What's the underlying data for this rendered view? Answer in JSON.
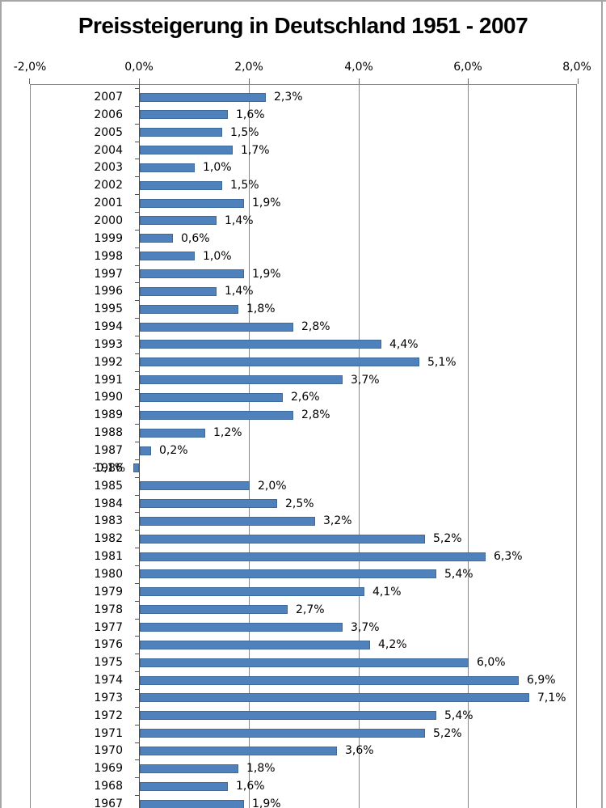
{
  "frame": {
    "border_color": "#a6a6a6",
    "background": "#ffffff"
  },
  "chart_data": {
    "type": "bar",
    "orientation": "horizontal",
    "title": "Preissteigerung in Deutschland 1951 - 2007",
    "xlabel": "",
    "ylabel": "",
    "grid": "vertical-gridlines-on",
    "legend": "none",
    "x_axis": {
      "range": [
        -2,
        8
      ],
      "tick_values": [
        -2,
        0,
        2,
        4,
        6,
        8
      ],
      "tick_labels": [
        "-2,0%",
        "0,0%",
        "2,0%",
        "4,0%",
        "6,0%",
        "8,0%"
      ]
    },
    "categories": [
      "2007",
      "2006",
      "2005",
      "2004",
      "2003",
      "2002",
      "2001",
      "2000",
      "1999",
      "1998",
      "1997",
      "1996",
      "1995",
      "1994",
      "1993",
      "1992",
      "1991",
      "1990",
      "1989",
      "1988",
      "1987",
      "1986",
      "1985",
      "1984",
      "1983",
      "1982",
      "1981",
      "1980",
      "1979",
      "1978",
      "1977",
      "1976",
      "1975",
      "1974",
      "1973",
      "1972",
      "1971",
      "1970",
      "1969",
      "1968",
      "1967"
    ],
    "values": [
      2.3,
      1.6,
      1.5,
      1.7,
      1.0,
      1.5,
      1.9,
      1.4,
      0.6,
      1.0,
      1.9,
      1.4,
      1.8,
      2.8,
      4.4,
      5.1,
      3.7,
      2.6,
      2.8,
      1.2,
      0.2,
      -0.1,
      2.0,
      2.5,
      3.2,
      5.2,
      6.3,
      5.4,
      4.1,
      2.7,
      3.7,
      4.2,
      6.0,
      6.9,
      7.1,
      5.4,
      5.2,
      3.6,
      1.8,
      1.6,
      1.9
    ],
    "value_labels": [
      "2,3%",
      "1,6%",
      "1,5%",
      "1,7%",
      "1,0%",
      "1,5%",
      "1,9%",
      "1,4%",
      "0,6%",
      "1,0%",
      "1,9%",
      "1,4%",
      "1,8%",
      "2,8%",
      "4,4%",
      "5,1%",
      "3,7%",
      "2,6%",
      "2,8%",
      "1,2%",
      "0,2%",
      "-0,1%",
      "2,0%",
      "2,5%",
      "3,2%",
      "5,2%",
      "6,3%",
      "5,4%",
      "4,1%",
      "2,7%",
      "3,7%",
      "4,2%",
      "6,0%",
      "6,9%",
      "7,1%",
      "5,4%",
      "5,2%",
      "3,6%",
      "1,8%",
      "1,6%",
      "1,9%"
    ],
    "colors": {
      "bar_fill": "#4f81bd",
      "bar_border": "#3d699b",
      "gridline": "#888888",
      "axis_line": "#4d4d4d",
      "tick": "#666666",
      "text": "#000000"
    }
  }
}
